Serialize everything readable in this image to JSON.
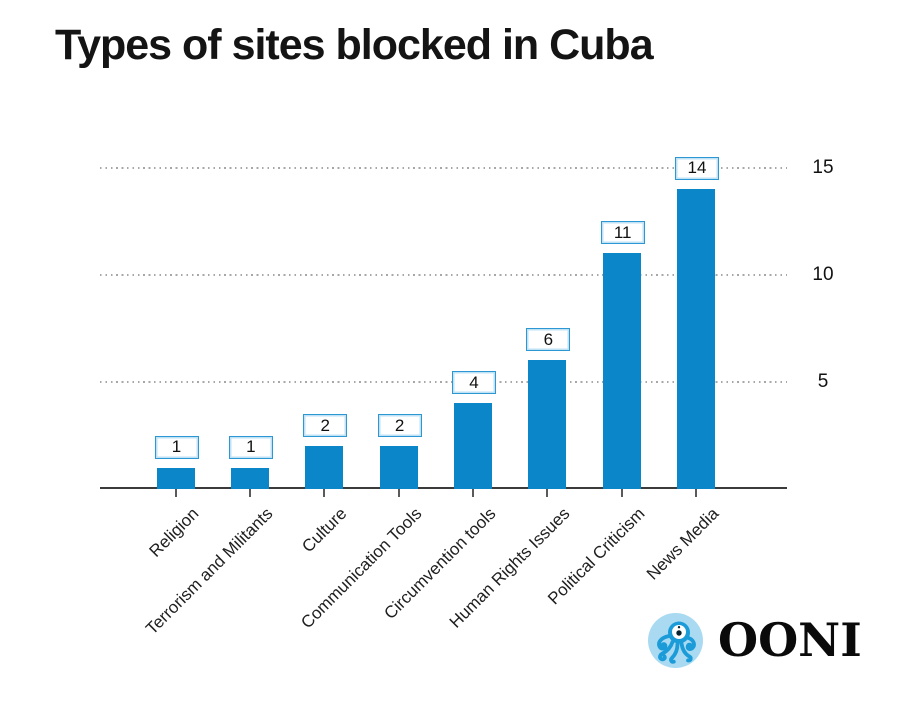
{
  "title": "Types of sites blocked in Cuba",
  "branding": {
    "logo_text": "OONI",
    "logo_icon": "octopus-icon"
  },
  "colors": {
    "bar": "#0b87c9",
    "value_box_border": "#2d97d3",
    "value_box_inner_glow": "#bfe2f5",
    "grid": "#a7a7a7",
    "axis": "#3b3b3b",
    "title_text": "#141414",
    "logo_circle_bg": "#a9daf2",
    "logo_octopus": "#1b9cd8"
  },
  "chart_data": {
    "type": "bar",
    "title": "Types of sites blocked in Cuba",
    "categories": [
      "Religion",
      "Terrorism and Militants",
      "Culture",
      "Communication Tools",
      "Circumvention tools",
      "Human Rights Issues",
      "Political Criticism",
      "News Media"
    ],
    "values": [
      1,
      1,
      2,
      2,
      4,
      6,
      11,
      14
    ],
    "bar_value_labels": [
      "1",
      "1",
      "2",
      "2",
      "4",
      "6",
      "11",
      "14"
    ],
    "y_ticks": [
      5,
      10,
      15
    ],
    "ylim": [
      0,
      15.35
    ],
    "y_axis_side": "right",
    "grid": "horizontal-dotted",
    "x_label_rotation": -45,
    "bar_label_style": "boxed value above bar",
    "legend": "none",
    "xlabel": "",
    "ylabel": ""
  }
}
